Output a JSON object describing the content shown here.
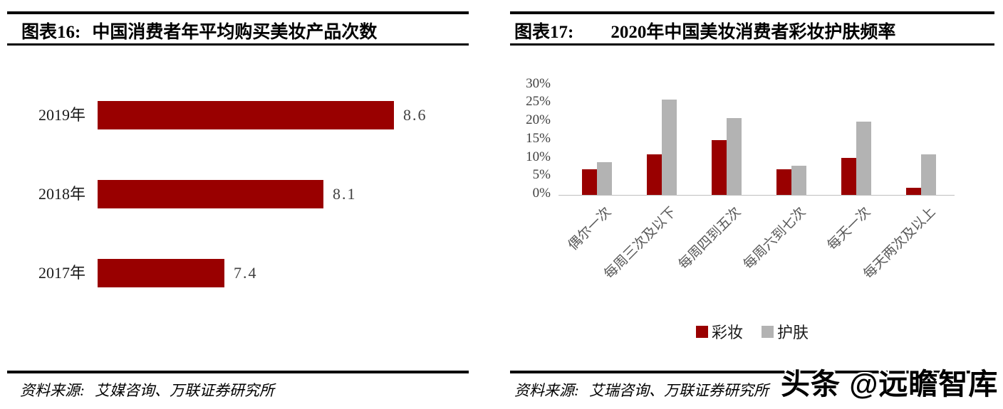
{
  "watermark": {
    "text": "头条 @远瞻智库"
  },
  "chart_data": [
    {
      "type": "bar",
      "orientation": "horizontal",
      "figure_label": "图表16:",
      "title": "中国消费者年平均购买美妆产品次数",
      "categories": [
        "2019年",
        "2018年",
        "2017年"
      ],
      "values": [
        8.6,
        8.1,
        7.4
      ],
      "value_labels": [
        "8.6",
        "8.1",
        "7.4"
      ],
      "bar_color": "#990000",
      "xlim": [
        6.5,
        8.8
      ],
      "grid": false,
      "source_label": "资料来源:",
      "source": "艾媒咨询、万联证券研究所"
    },
    {
      "type": "bar",
      "orientation": "vertical",
      "figure_label": "图表17:",
      "title": "2020年中国美妆消费者彩妆护肤频率",
      "categories": [
        "偶尔一次",
        "每周三次及以下",
        "每周四到五次",
        "每周六到七次",
        "每天一次",
        "每天两次及以上"
      ],
      "series": [
        {
          "name": "彩妆",
          "color": "#990000",
          "values": [
            7,
            11,
            15,
            7,
            10,
            2
          ]
        },
        {
          "name": "护肤",
          "color": "#b3b3b3",
          "values": [
            9,
            26,
            21,
            8,
            20,
            11
          ]
        }
      ],
      "ylim": [
        0,
        30
      ],
      "ytick_step": 5,
      "ytick_labels": [
        "0%",
        "5%",
        "10%",
        "15%",
        "20%",
        "25%",
        "30%"
      ],
      "grid": false,
      "legend_position": "bottom",
      "source_label": "资料来源:",
      "source": "艾瑞咨询、万联证券研究所"
    }
  ]
}
